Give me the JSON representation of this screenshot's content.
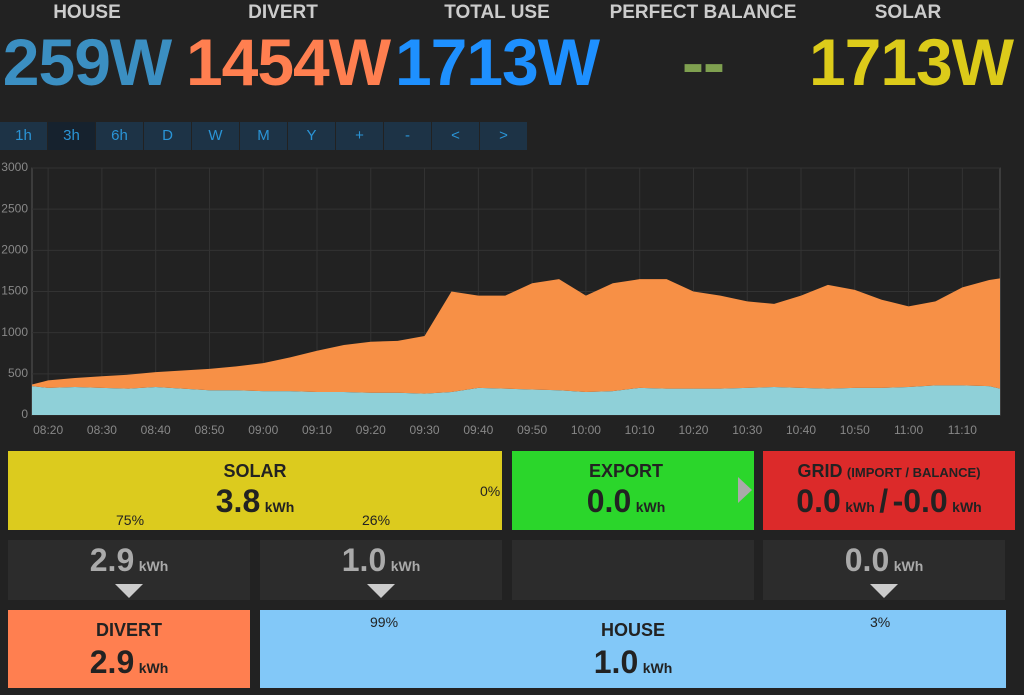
{
  "header": {
    "items": [
      {
        "label": "HOUSE",
        "value": "259W"
      },
      {
        "label": "DIVERT",
        "value": "1454W"
      },
      {
        "label": "TOTAL USE",
        "value": "1713W"
      },
      {
        "label": "PERFECT BALANCE",
        "value": "--"
      },
      {
        "label": "SOLAR",
        "value": "1713W"
      }
    ]
  },
  "buttons": [
    "1h",
    "3h",
    "6h",
    "D",
    "W",
    "M",
    "Y",
    "+",
    "-",
    "<",
    ">"
  ],
  "chart": {
    "type": "area",
    "stacked": true,
    "x": [
      "08:17",
      "08:20",
      "08:25",
      "08:30",
      "08:35",
      "08:40",
      "08:45",
      "08:50",
      "08:55",
      "09:00",
      "09:05",
      "09:10",
      "09:15",
      "09:20",
      "09:25",
      "09:30",
      "09:35",
      "09:40",
      "09:45",
      "09:50",
      "09:55",
      "10:00",
      "10:05",
      "10:10",
      "10:15",
      "10:20",
      "10:25",
      "10:30",
      "10:35",
      "10:40",
      "10:45",
      "10:50",
      "10:55",
      "11:00",
      "11:05",
      "11:10",
      "11:15",
      "11:17"
    ],
    "series": [
      {
        "color": "#8fd0d8",
        "values": [
          350,
          330,
          340,
          330,
          320,
          340,
          320,
          300,
          300,
          290,
          290,
          280,
          280,
          270,
          270,
          260,
          280,
          330,
          320,
          310,
          300,
          280,
          290,
          330,
          320,
          320,
          320,
          330,
          340,
          330,
          320,
          330,
          330,
          340,
          360,
          360,
          350,
          320
        ]
      },
      {
        "color": "#f79046",
        "values": [
          20,
          90,
          110,
          140,
          170,
          180,
          220,
          260,
          290,
          340,
          410,
          500,
          570,
          620,
          630,
          700,
          1220,
          1120,
          1130,
          1290,
          1350,
          1170,
          1310,
          1320,
          1330,
          1180,
          1130,
          1050,
          1010,
          1120,
          1260,
          1190,
          1070,
          980,
          1020,
          1190,
          1290,
          1340
        ]
      }
    ],
    "xlim": [
      "08:17",
      "11:17"
    ],
    "xticks": [
      "08:20",
      "08:30",
      "08:40",
      "08:50",
      "09:00",
      "09:10",
      "09:20",
      "09:30",
      "09:40",
      "09:50",
      "10:00",
      "10:10",
      "10:20",
      "10:30",
      "10:40",
      "10:50",
      "11:00",
      "11:10"
    ],
    "ylim": [
      0,
      3000
    ],
    "yticks": [
      0,
      500,
      1000,
      1500,
      2000,
      2500,
      3000
    ],
    "grid": true
  },
  "panels": {
    "solar": {
      "title": "SOLAR",
      "value": "3.8",
      "unit": "kWh",
      "pct_left": "75%",
      "pct_mid": "26%",
      "pct_right": "0%"
    },
    "export": {
      "title": "EXPORT",
      "value": "0.0",
      "unit": "kWh"
    },
    "grid": {
      "title": "GRID",
      "subtitle": "(IMPORT / BALANCE)",
      "import": "0.0",
      "import_unit": "kWh",
      "separator": "/",
      "balance": "-0.0",
      "balance_unit": "kWh"
    },
    "flows": {
      "divert": {
        "value": "2.9",
        "unit": "kWh"
      },
      "house": {
        "value": "1.0",
        "unit": "kWh"
      },
      "grid": {
        "value": "0.0",
        "unit": "kWh"
      }
    },
    "divert": {
      "title": "DIVERT",
      "value": "2.9",
      "unit": "kWh"
    },
    "house": {
      "title": "HOUSE",
      "value": "1.0",
      "unit": "kWh",
      "pct_left": "99%",
      "pct_right": "3%"
    }
  }
}
